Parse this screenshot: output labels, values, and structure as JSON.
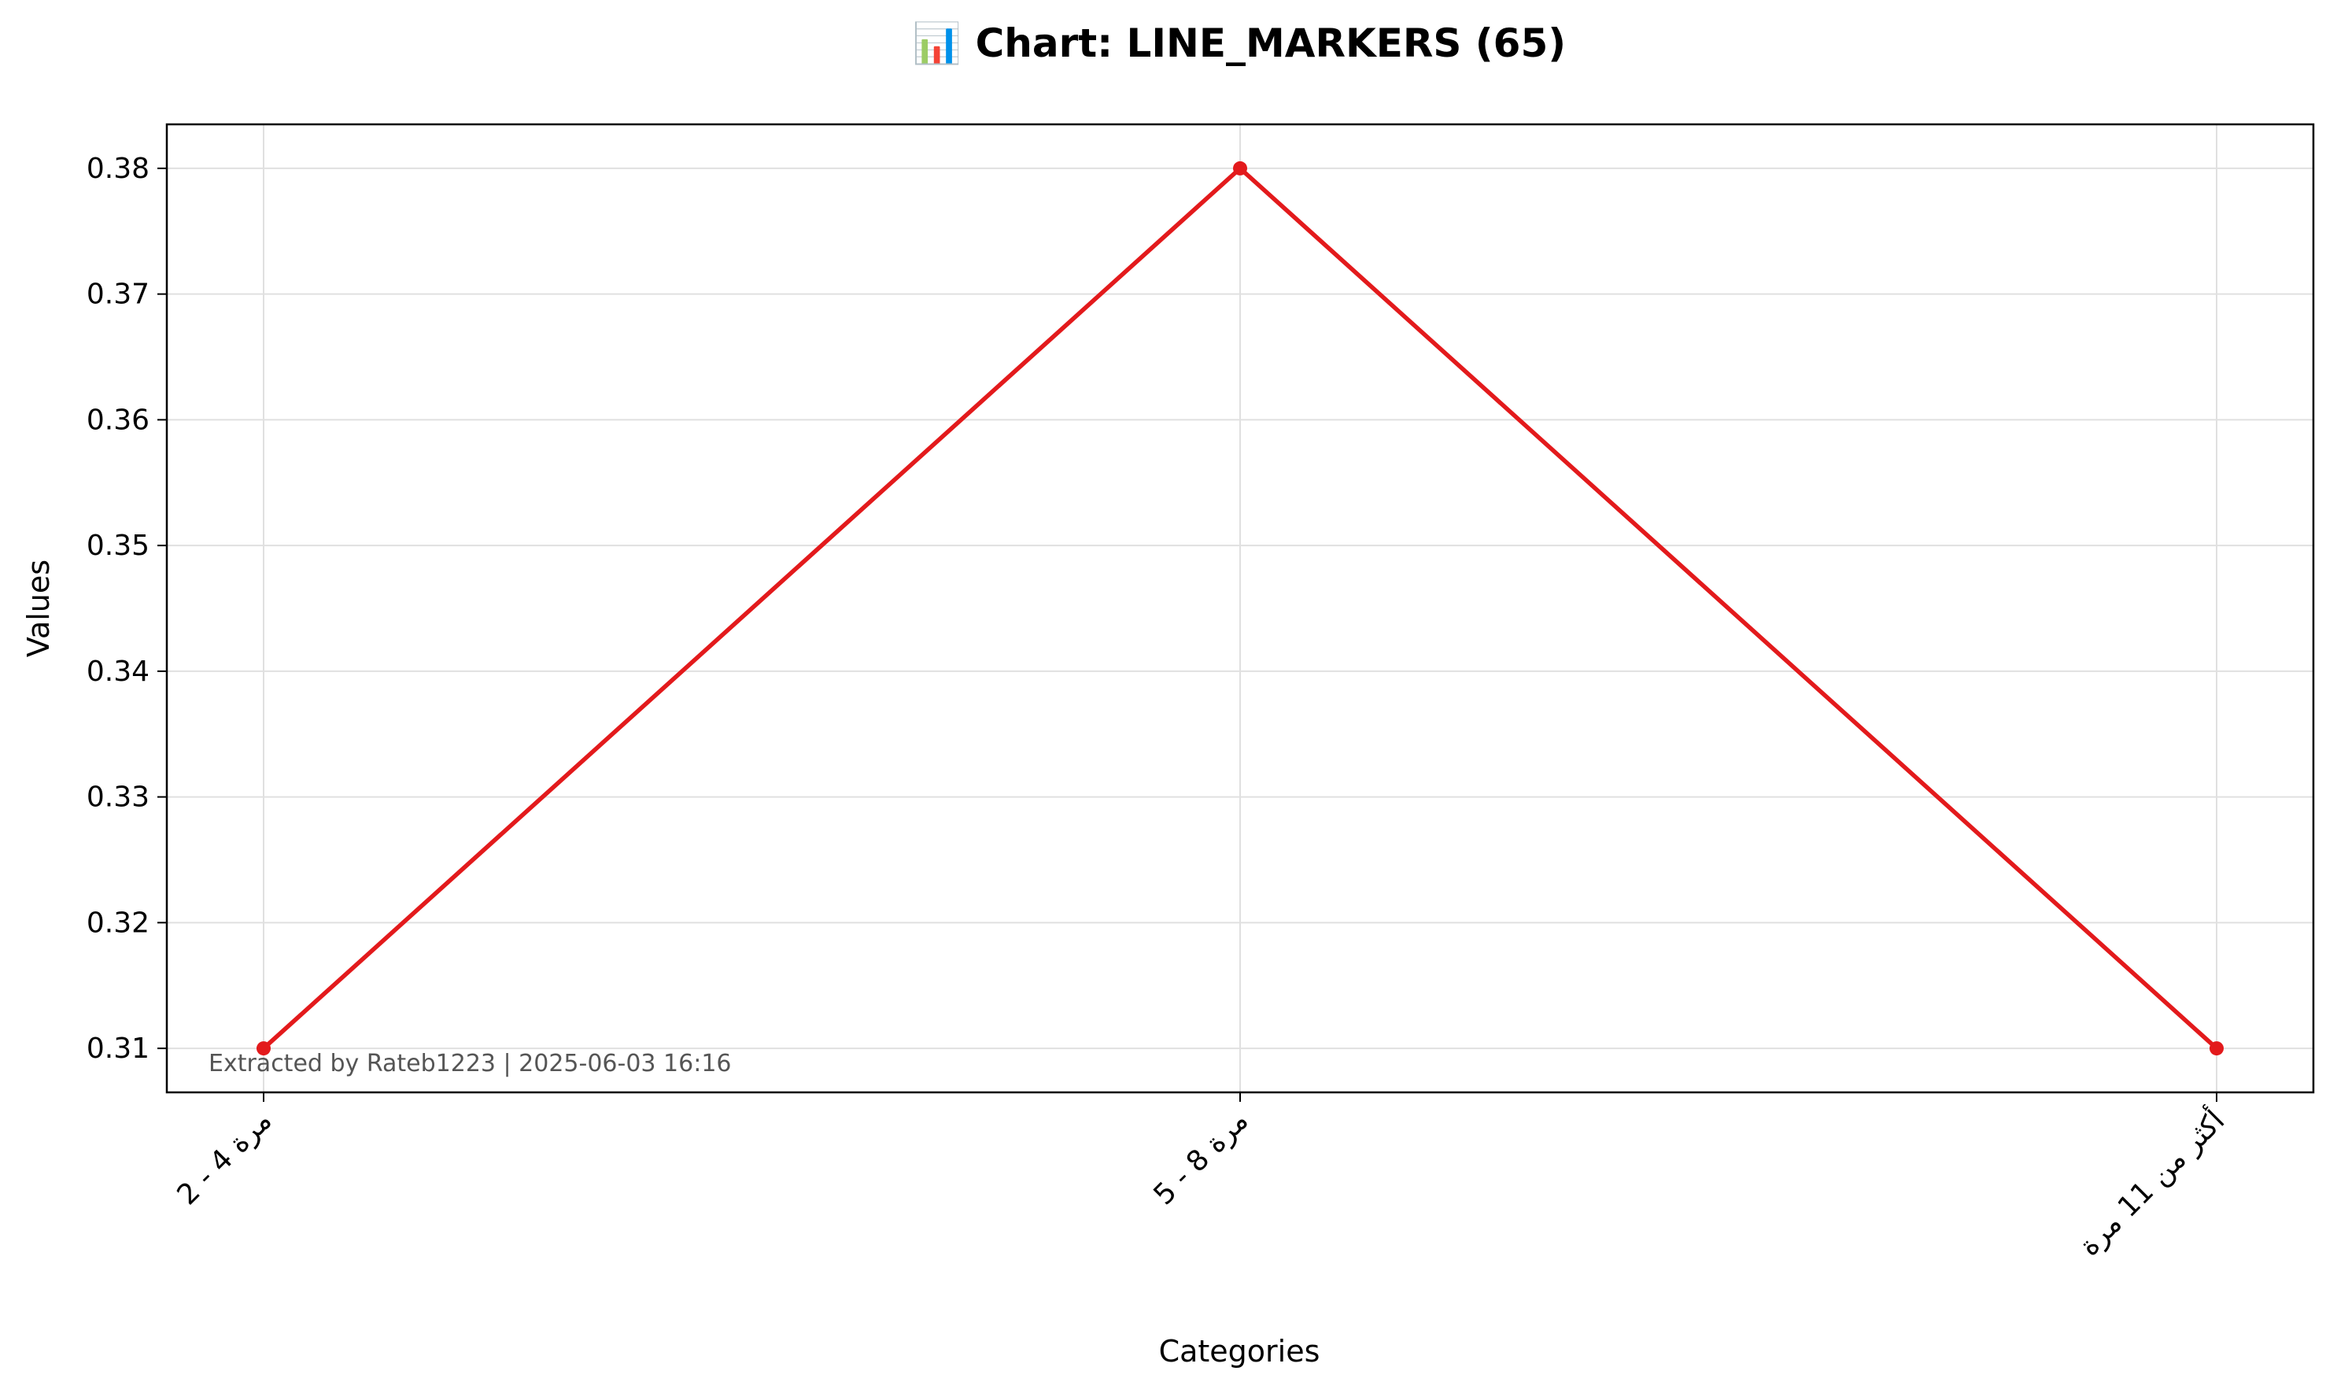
{
  "chart_data": {
    "type": "line",
    "title": "📊 Chart: LINE_MARKERS (65)",
    "xlabel": "Categories",
    "ylabel": "Values",
    "categories": [
      "2 - 4 مرة",
      "5 - 8 مرة",
      "أكثر من 11 مرة"
    ],
    "series": [
      {
        "values": [
          0.31,
          0.38,
          0.31
        ],
        "color": "#e31a1c"
      }
    ],
    "ylim": [
      0.3065,
      0.3835
    ],
    "yticks": [
      "0.31",
      "0.32",
      "0.33",
      "0.34",
      "0.35",
      "0.36",
      "0.37",
      "0.38"
    ],
    "grid": true,
    "annotation": "Extracted by Rateb1223 | 2025-06-03 16:16"
  }
}
